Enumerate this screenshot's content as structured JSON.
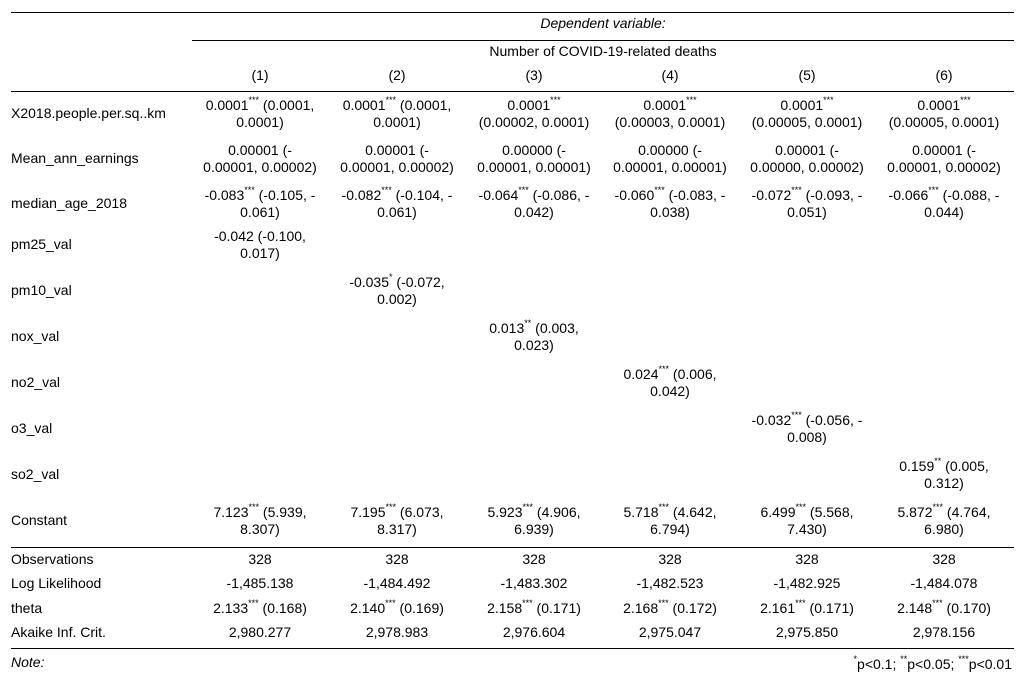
{
  "header": {
    "dependent_label": "Dependent variable:",
    "outcome_label": "Number of COVID-19-related deaths",
    "models": [
      "(1)",
      "(2)",
      "(3)",
      "(4)",
      "(5)",
      "(6)"
    ]
  },
  "coef_rows": [
    {
      "name": "X2018.people.per.sq..km",
      "cells": [
        [
          "0.0001",
          "***",
          " (0.0001,",
          "0.0001)"
        ],
        [
          "0.0001",
          "***",
          " (0.0001,",
          "0.0001)"
        ],
        [
          "0.0001",
          "***",
          "",
          "(0.00002, 0.0001)"
        ],
        [
          "0.0001",
          "***",
          "",
          "(0.00003, 0.0001)"
        ],
        [
          "0.0001",
          "***",
          "",
          "(0.00005, 0.0001)"
        ],
        [
          "0.0001",
          "***",
          "",
          "(0.00005, 0.0001)"
        ]
      ]
    },
    {
      "name": "Mean_ann_earnings",
      "cells": [
        [
          "0.00001 (-",
          "",
          "",
          "0.00001, 0.00002)"
        ],
        [
          "0.00001 (-",
          "",
          "",
          "0.00001, 0.00002)"
        ],
        [
          "0.00000 (-",
          "",
          "",
          "0.00001, 0.00001)"
        ],
        [
          "0.00000 (-",
          "",
          "",
          "0.00001, 0.00001)"
        ],
        [
          "0.00001 (-",
          "",
          "",
          "0.00000, 0.00002)"
        ],
        [
          "0.00001 (-",
          "",
          "",
          "0.00001, 0.00002)"
        ]
      ]
    },
    {
      "name": "median_age_2018",
      "cells": [
        [
          "-0.083",
          "***",
          " (-0.105, -",
          "0.061)"
        ],
        [
          "-0.082",
          "***",
          " (-0.104, -",
          "0.061)"
        ],
        [
          "-0.064",
          "***",
          " (-0.086, -",
          "0.042)"
        ],
        [
          "-0.060",
          "***",
          " (-0.083, -",
          "0.038)"
        ],
        [
          "-0.072",
          "***",
          " (-0.093, -",
          "0.051)"
        ],
        [
          "-0.066",
          "***",
          " (-0.088, -",
          "0.044)"
        ]
      ]
    },
    {
      "name": "pm25_val",
      "cells": [
        [
          "-0.042 (-0.100,",
          "",
          "",
          "0.017)"
        ],
        null,
        null,
        null,
        null,
        null
      ]
    },
    {
      "name": "pm10_val",
      "cells": [
        null,
        [
          "-0.035",
          "*",
          " (-0.072,",
          "0.002)"
        ],
        null,
        null,
        null,
        null
      ]
    },
    {
      "name": "nox_val",
      "cells": [
        null,
        null,
        [
          "0.013",
          "**",
          " (0.003,",
          "0.023)"
        ],
        null,
        null,
        null
      ]
    },
    {
      "name": "no2_val",
      "cells": [
        null,
        null,
        null,
        [
          "0.024",
          "***",
          " (0.006,",
          "0.042)"
        ],
        null,
        null
      ]
    },
    {
      "name": "o3_val",
      "cells": [
        null,
        null,
        null,
        null,
        [
          "-0.032",
          "***",
          " (-0.056, -",
          "0.008)"
        ],
        null
      ]
    },
    {
      "name": "so2_val",
      "cells": [
        null,
        null,
        null,
        null,
        null,
        [
          "0.159",
          "**",
          " (0.005,",
          "0.312)"
        ]
      ]
    },
    {
      "name": "Constant",
      "cells": [
        [
          "7.123",
          "***",
          " (5.939,",
          "8.307)"
        ],
        [
          "7.195",
          "***",
          " (6.073,",
          "8.317)"
        ],
        [
          "5.923",
          "***",
          " (4.906,",
          "6.939)"
        ],
        [
          "5.718",
          "***",
          " (4.642,",
          "6.794)"
        ],
        [
          "6.499",
          "***",
          " (5.568,",
          "7.430)"
        ],
        [
          "5.872",
          "***",
          " (4.764,",
          "6.980)"
        ]
      ]
    }
  ],
  "stat_rows": [
    {
      "name": "Observations",
      "cells": [
        [
          "328",
          ""
        ],
        [
          "328",
          ""
        ],
        [
          "328",
          ""
        ],
        [
          "328",
          ""
        ],
        [
          "328",
          ""
        ],
        [
          "328",
          ""
        ]
      ]
    },
    {
      "name": "Log Likelihood",
      "cells": [
        [
          "-1,485.138",
          ""
        ],
        [
          "-1,484.492",
          ""
        ],
        [
          "-1,483.302",
          ""
        ],
        [
          "-1,482.523",
          ""
        ],
        [
          "-1,482.925",
          ""
        ],
        [
          "-1,484.078",
          ""
        ]
      ]
    },
    {
      "name": "theta",
      "cells": [
        [
          "2.133",
          "***",
          " (0.168)"
        ],
        [
          "2.140",
          "***",
          " (0.169)"
        ],
        [
          "2.158",
          "***",
          " (0.171)"
        ],
        [
          "2.168",
          "***",
          " (0.172)"
        ],
        [
          "2.161",
          "***",
          " (0.171)"
        ],
        [
          "2.148",
          "***",
          " (0.170)"
        ]
      ]
    },
    {
      "name": "Akaike Inf. Crit.",
      "cells": [
        [
          "2,980.277",
          ""
        ],
        [
          "2,978.983",
          ""
        ],
        [
          "2,976.604",
          ""
        ],
        [
          "2,975.047",
          ""
        ],
        [
          "2,975.850",
          ""
        ],
        [
          "2,978.156",
          ""
        ]
      ]
    }
  ],
  "footer": {
    "note_label": "Note:",
    "sig": [
      {
        "stars": "*",
        "text": "p<0.1; "
      },
      {
        "stars": "**",
        "text": "p<0.05; "
      },
      {
        "stars": "***",
        "text": "p<0.01"
      }
    ]
  }
}
